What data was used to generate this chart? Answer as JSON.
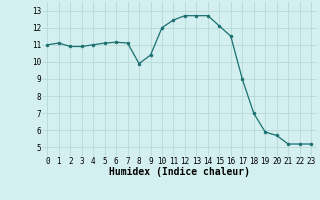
{
  "x": [
    0,
    1,
    2,
    3,
    4,
    5,
    6,
    7,
    8,
    9,
    10,
    11,
    12,
    13,
    14,
    15,
    16,
    17,
    18,
    19,
    20,
    21,
    22,
    23
  ],
  "y": [
    11.0,
    11.1,
    10.9,
    10.9,
    11.0,
    11.1,
    11.15,
    11.1,
    9.9,
    10.4,
    12.0,
    12.45,
    12.7,
    12.7,
    12.7,
    12.1,
    11.5,
    9.0,
    7.0,
    5.9,
    5.7,
    5.2,
    5.2,
    5.2
  ],
  "xlabel": "Humidex (Indice chaleur)",
  "ylim_min": 4.5,
  "ylim_max": 13.5,
  "xlim_min": -0.5,
  "xlim_max": 23.5,
  "yticks": [
    5,
    6,
    7,
    8,
    9,
    10,
    11,
    12,
    13
  ],
  "xticks": [
    0,
    1,
    2,
    3,
    4,
    5,
    6,
    7,
    8,
    9,
    10,
    11,
    12,
    13,
    14,
    15,
    16,
    17,
    18,
    19,
    20,
    21,
    22,
    23
  ],
  "line_color": "#1a7070",
  "marker_color": "#1a7070",
  "bg_color": "#d4efef",
  "grid_color": "#b8d8d8",
  "tick_label_fontsize": 5.5,
  "xlabel_fontsize": 7.0,
  "xlabel_fontweight": "bold"
}
